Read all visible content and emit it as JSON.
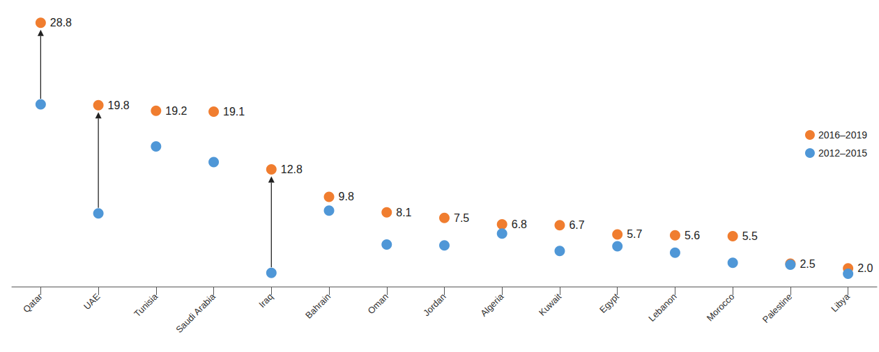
{
  "chart_data": {
    "type": "scatter",
    "categories": [
      "Qatar",
      "UAE",
      "Tunisia",
      "Saudi Arabia",
      "Iraq",
      "Bahrain",
      "Oman",
      "Jordan",
      "Algeria",
      "Kuwait",
      "Egypt",
      "Lebanon",
      "Morocco",
      "Palestine",
      "Libya"
    ],
    "series": [
      {
        "name": "2012–2015",
        "color": "#4f97d7",
        "marker": "circle",
        "values": [
          19.9,
          8.0,
          15.3,
          13.6,
          1.5,
          8.3,
          4.6,
          4.5,
          5.8,
          3.9,
          4.4,
          3.7,
          2.6,
          2.4,
          1.4
        ]
      },
      {
        "name": "2016–2019",
        "color": "#f07d2f",
        "marker": "circle",
        "data_labels": true,
        "values": [
          28.8,
          19.8,
          19.2,
          19.1,
          12.8,
          9.8,
          8.1,
          7.5,
          6.8,
          6.7,
          5.7,
          5.6,
          5.5,
          2.5,
          2.0
        ],
        "value_labels": [
          "28.8",
          "19.8",
          "19.2",
          "19.1",
          "12.8",
          "9.8",
          "8.1",
          "7.5",
          "6.8",
          "6.7",
          "5.7",
          "5.6",
          "5.5",
          "2.5",
          "2.0"
        ]
      }
    ],
    "arrows": [
      "Qatar",
      "UAE",
      "Iraq"
    ],
    "ylim": [
      0,
      30
    ],
    "tick_labels": "x",
    "grid": false,
    "legend": "right"
  }
}
